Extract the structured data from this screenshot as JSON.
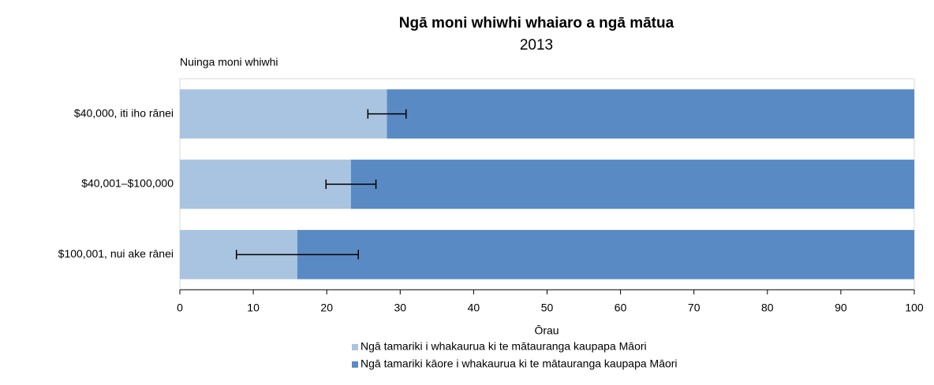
{
  "chart_data": {
    "type": "stacked-bar-horizontal",
    "title": "Ngā moni whiwhi whaiaro a ngā mātua",
    "subtitle": "2013",
    "y_label": "Nuinga moni whiwhi",
    "x_label": "Ōrau",
    "categories": [
      "$40,000, iti iho rānei",
      "$40,001–$100,000",
      "$100,001, nui ake rānei"
    ],
    "series": [
      {
        "name": "Ngā tamariki i whakaurua ki te mātauranga kaupapa Māori",
        "color": "#a9c4e0",
        "values": [
          28.2,
          23.3,
          16.0
        ],
        "errors": [
          2.6,
          3.4,
          8.3
        ]
      },
      {
        "name": "Ngā tamariki kāore i whakaurua ki te mātauranga kaupapa Māori",
        "color": "#5a8ac4",
        "values": [
          71.8,
          76.7,
          84.0
        ]
      }
    ],
    "xlim": [
      0,
      100
    ],
    "xticks": [
      0,
      10,
      20,
      30,
      40,
      50,
      60,
      70,
      80,
      90,
      100
    ],
    "grid": false,
    "legend": "bottom"
  }
}
